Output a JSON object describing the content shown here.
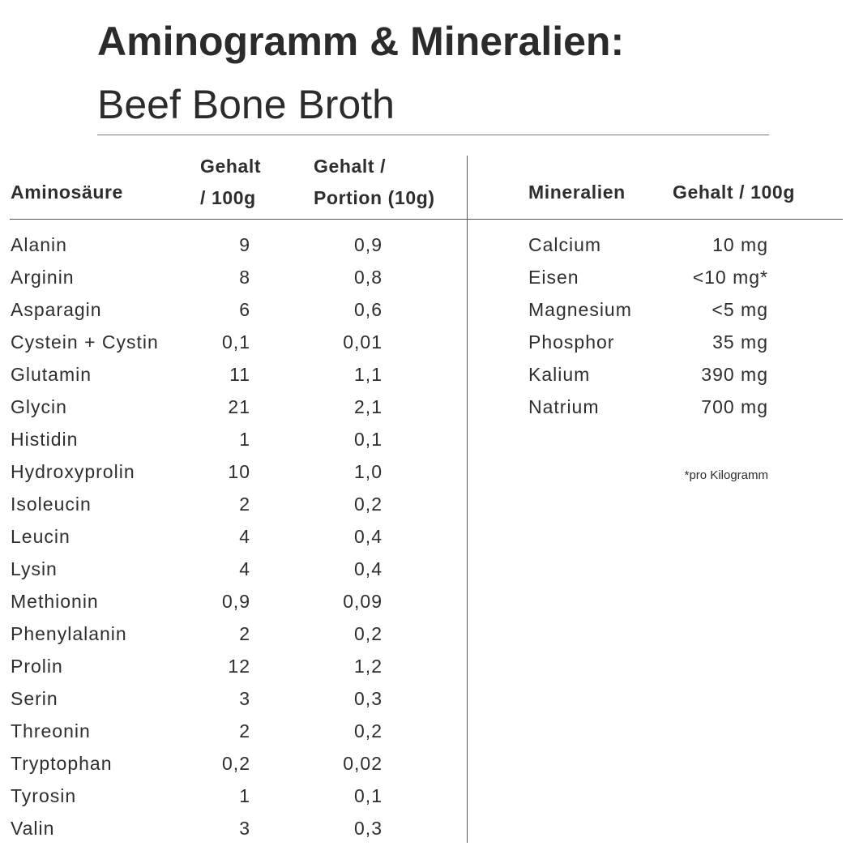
{
  "header": {
    "title": "Aminogramm & Mineralien:",
    "subtitle": "Beef Bone Broth"
  },
  "amino_table": {
    "columns": [
      [
        "Aminosäure"
      ],
      [
        "Gehalt",
        "/ 100g"
      ],
      [
        "Gehalt /",
        "Portion (10g)"
      ]
    ],
    "rows": [
      [
        "Alanin",
        "9",
        "0,9"
      ],
      [
        "Arginin",
        "8",
        "0,8"
      ],
      [
        "Asparagin",
        "6",
        "0,6"
      ],
      [
        "Cystein + Cystin",
        "0,1",
        "0,01"
      ],
      [
        "Glutamin",
        "11",
        "1,1"
      ],
      [
        "Glycin",
        "21",
        "2,1"
      ],
      [
        "Histidin",
        "1",
        "0,1"
      ],
      [
        "Hydroxyprolin",
        "10",
        "1,0"
      ],
      [
        "Isoleucin",
        "2",
        "0,2"
      ],
      [
        "Leucin",
        "4",
        "0,4"
      ],
      [
        "Lysin",
        "4",
        "0,4"
      ],
      [
        "Methionin",
        "0,9",
        "0,09"
      ],
      [
        "Phenylalanin",
        "2",
        "0,2"
      ],
      [
        "Prolin",
        "12",
        "1,2"
      ],
      [
        "Serin",
        "3",
        "0,3"
      ],
      [
        "Threonin",
        "2",
        "0,2"
      ],
      [
        "Tryptophan",
        "0,2",
        "0,02"
      ],
      [
        "Tyrosin",
        "1",
        "0,1"
      ],
      [
        "Valin",
        "3",
        "0,3"
      ]
    ]
  },
  "mineral_table": {
    "columns": [
      [
        "Mineralien"
      ],
      [
        "Gehalt / 100g"
      ]
    ],
    "rows": [
      [
        "Calcium",
        "10 mg"
      ],
      [
        "Eisen",
        "<10 mg*"
      ],
      [
        "Magnesium",
        "<5 mg"
      ],
      [
        "Phosphor",
        "35 mg"
      ],
      [
        "Kalium",
        "390 mg"
      ],
      [
        "Natrium",
        "700 mg"
      ]
    ],
    "footnote": "*pro Kilogramm"
  }
}
